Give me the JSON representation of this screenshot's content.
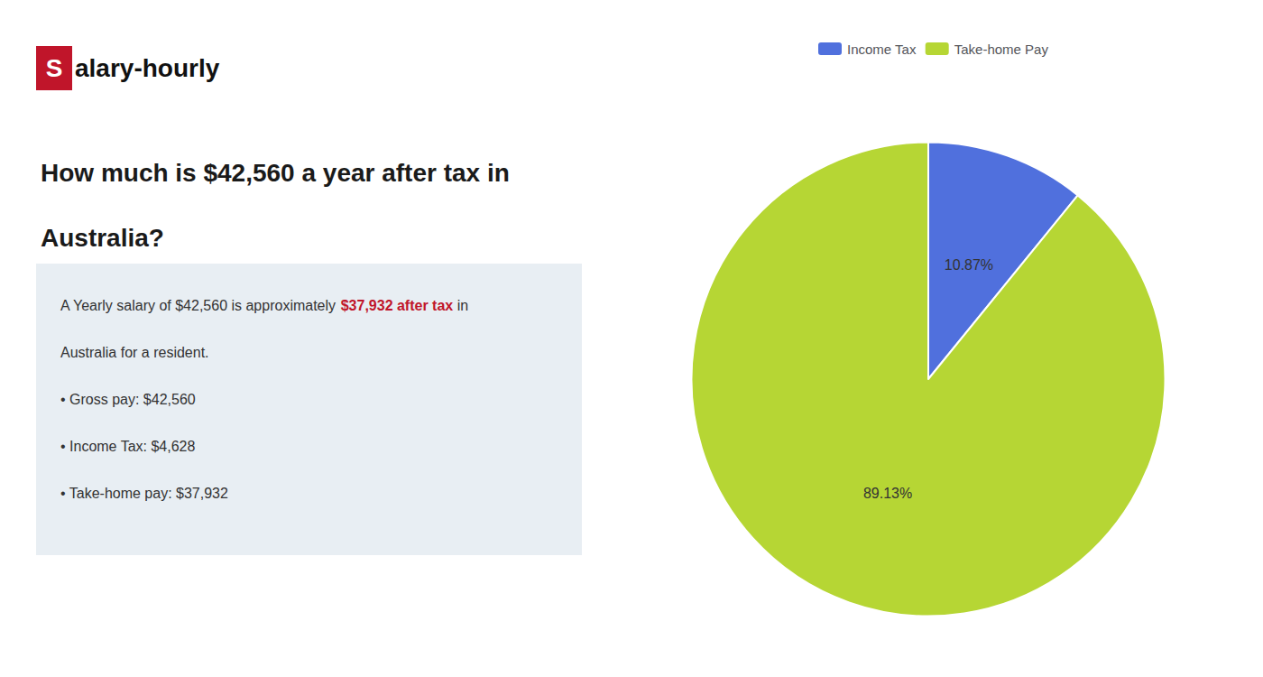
{
  "chart_data": {
    "type": "pie",
    "title": "How much is $42,560 a year after tax in\nAustralia?",
    "categories": [
      "Income Tax",
      "Take-home Pay"
    ],
    "values": [
      10.87,
      89.13
    ],
    "value_labels": [
      "10.87%",
      "89.13%"
    ],
    "data_labels": true,
    "legend": "top",
    "annotations": [
      [
        {
          "text": "S",
          "color": "#c0152a"
        },
        {
          "text": "alary-hourly"
        }
      ],
      [
        {
          "text": "A Yearly salary of $42,560 is approximately "
        },
        {
          "text": "$37,932 after tax",
          "color": "#c0152a"
        },
        {
          "text": " in"
        }
      ],
      [
        {
          "text": "Australia for a resident."
        }
      ],
      [
        {
          "text": "• Gross pay: $42,560"
        }
      ],
      [
        {
          "text": "• Income Tax: $4,628"
        }
      ],
      [
        {
          "text": "• Take-home pay: $37,932"
        }
      ]
    ]
  }
}
